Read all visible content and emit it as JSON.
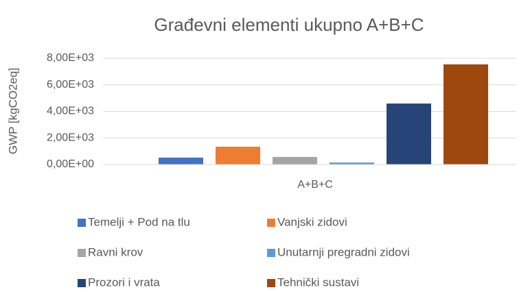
{
  "chart_data": {
    "type": "bar",
    "title": "Građevni elementi ukupno A+B+C",
    "y_label": "GWP [kgCO2eq]",
    "categories": [
      "A+B+C"
    ],
    "series": [
      {
        "name": "Temelji + Pod na tlu",
        "color": "#4472c4",
        "values": [
          520
        ]
      },
      {
        "name": "Vanjski zidovi",
        "color": "#ed7d31",
        "values": [
          1340
        ]
      },
      {
        "name": "Ravni krov",
        "color": "#a5a5a5",
        "values": [
          570
        ]
      },
      {
        "name": "Unutarnji pregradni zidovi",
        "color": "#5b9bd5",
        "values": [
          150
        ]
      },
      {
        "name": "Prozori i vrata",
        "color": "#264478",
        "values": [
          4590
        ]
      },
      {
        "name": "Tehnički sustavi",
        "color": "#9e480e",
        "values": [
          7540
        ]
      }
    ],
    "ylim": [
      0,
      8000
    ],
    "yticks": [
      {
        "value": 0,
        "label": "0,00E+00"
      },
      {
        "value": 2000,
        "label": "2,00E+03"
      },
      {
        "value": 4000,
        "label": "4,00E+03"
      },
      {
        "value": 6000,
        "label": "6,00E+03"
      },
      {
        "value": 8000,
        "label": "8,00E+03"
      }
    ],
    "grid": true,
    "legend": "bottom"
  }
}
